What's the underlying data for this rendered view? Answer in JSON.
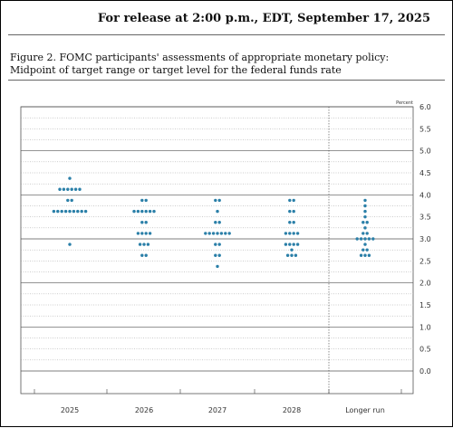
{
  "header": {
    "release_text": "For release at 2:00 p.m., EDT, September 17, 2025"
  },
  "figure": {
    "caption": "Figure 2. FOMC participants' assessments of appropriate monetary policy: Midpoint of target range or target level for the federal funds rate"
  },
  "chart_data": {
    "type": "scatter",
    "subtype": "dot plot",
    "unit_label": "Percent",
    "ylim": [
      0.0,
      6.0
    ],
    "y_ticks": [
      "6.0",
      "5.5",
      "5.0",
      "4.5",
      "4.0",
      "3.5",
      "3.0",
      "2.5",
      "2.0",
      "1.5",
      "1.0",
      "0.5",
      "0.0"
    ],
    "categories": [
      "2025",
      "2026",
      "2027",
      "2028",
      "Longer run"
    ],
    "dot_color": "#2a7fa8",
    "series": [
      {
        "category": "2025",
        "points": [
          {
            "y": 4.375,
            "count": 1
          },
          {
            "y": 4.125,
            "count": 6
          },
          {
            "y": 3.875,
            "count": 2
          },
          {
            "y": 3.625,
            "count": 9
          },
          {
            "y": 2.875,
            "count": 1
          }
        ]
      },
      {
        "category": "2026",
        "points": [
          {
            "y": 3.875,
            "count": 2
          },
          {
            "y": 3.625,
            "count": 6
          },
          {
            "y": 3.375,
            "count": 2
          },
          {
            "y": 3.125,
            "count": 4
          },
          {
            "y": 2.875,
            "count": 3
          },
          {
            "y": 2.625,
            "count": 2
          }
        ]
      },
      {
        "category": "2027",
        "points": [
          {
            "y": 3.875,
            "count": 2
          },
          {
            "y": 3.625,
            "count": 1
          },
          {
            "y": 3.375,
            "count": 2
          },
          {
            "y": 3.125,
            "count": 7
          },
          {
            "y": 2.875,
            "count": 2
          },
          {
            "y": 2.625,
            "count": 2
          },
          {
            "y": 2.375,
            "count": 1
          }
        ]
      },
      {
        "category": "2028",
        "points": [
          {
            "y": 3.875,
            "count": 2
          },
          {
            "y": 3.625,
            "count": 2
          },
          {
            "y": 3.375,
            "count": 2
          },
          {
            "y": 3.125,
            "count": 4
          },
          {
            "y": 2.875,
            "count": 4
          },
          {
            "y": 2.75,
            "count": 1
          },
          {
            "y": 2.625,
            "count": 3
          }
        ]
      },
      {
        "category": "Longer run",
        "points": [
          {
            "y": 3.875,
            "count": 1
          },
          {
            "y": 3.75,
            "count": 1
          },
          {
            "y": 3.625,
            "count": 1
          },
          {
            "y": 3.5,
            "count": 1
          },
          {
            "y": 3.375,
            "count": 2
          },
          {
            "y": 3.25,
            "count": 1
          },
          {
            "y": 3.125,
            "count": 2
          },
          {
            "y": 3.0,
            "count": 5
          },
          {
            "y": 2.875,
            "count": 1
          },
          {
            "y": 2.75,
            "count": 2
          },
          {
            "y": 2.625,
            "count": 3
          }
        ]
      }
    ]
  }
}
